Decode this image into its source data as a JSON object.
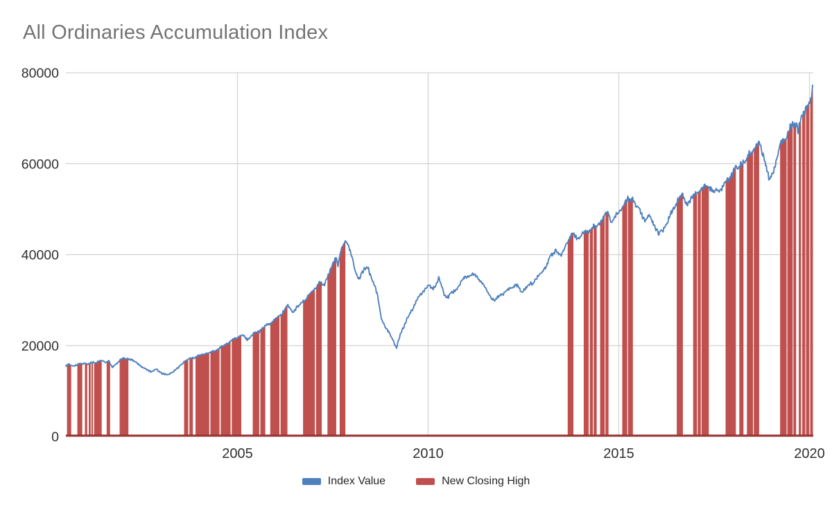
{
  "title": "All Ordinaries Accumulation Index",
  "legend": {
    "items": [
      {
        "label": "Index Value",
        "color": "#4E80BC"
      },
      {
        "label": "New Closing High",
        "color": "#C0504D"
      }
    ]
  },
  "chart_data": {
    "type": "line",
    "title": "All Ordinaries Accumulation Index",
    "xlabel": "",
    "ylabel": "",
    "xlim": [
      2000.5,
      2020.1
    ],
    "ylim": [
      0,
      80000
    ],
    "x_ticks": [
      2005,
      2010,
      2015,
      2020
    ],
    "y_ticks": [
      0,
      20000,
      40000,
      60000,
      80000
    ],
    "grid": true,
    "legend_position": "bottom",
    "gridline_color": "#D2D2D2",
    "baseline_color": "#953735",
    "tick_label_color": "#303030",
    "series": [
      {
        "name": "Index Value",
        "type": "line",
        "color": "#4E80BC",
        "points": [
          [
            2000.5,
            15500
          ],
          [
            2000.58,
            15900
          ],
          [
            2000.67,
            15500
          ],
          [
            2000.78,
            15700
          ],
          [
            2000.88,
            16000
          ],
          [
            2001.02,
            16200
          ],
          [
            2001.08,
            15800
          ],
          [
            2001.18,
            16200
          ],
          [
            2001.3,
            16400
          ],
          [
            2001.44,
            16700
          ],
          [
            2001.55,
            16400
          ],
          [
            2001.62,
            16800
          ],
          [
            2001.72,
            15100
          ],
          [
            2001.8,
            15900
          ],
          [
            2001.93,
            16900
          ],
          [
            2002.05,
            17100
          ],
          [
            2002.14,
            17200
          ],
          [
            2002.3,
            16500
          ],
          [
            2002.45,
            15600
          ],
          [
            2002.6,
            14700
          ],
          [
            2002.75,
            14300
          ],
          [
            2002.88,
            14700
          ],
          [
            2003.0,
            14000
          ],
          [
            2003.17,
            13500
          ],
          [
            2003.3,
            14200
          ],
          [
            2003.45,
            15100
          ],
          [
            2003.6,
            16500
          ],
          [
            2003.72,
            17000
          ],
          [
            2003.85,
            17300
          ],
          [
            2004.0,
            17800
          ],
          [
            2004.15,
            18200
          ],
          [
            2004.3,
            18500
          ],
          [
            2004.45,
            19000
          ],
          [
            2004.6,
            19700
          ],
          [
            2004.76,
            20700
          ],
          [
            2004.9,
            21400
          ],
          [
            2005.05,
            22100
          ],
          [
            2005.12,
            22300
          ],
          [
            2005.25,
            21300
          ],
          [
            2005.4,
            22400
          ],
          [
            2005.55,
            23100
          ],
          [
            2005.72,
            24200
          ],
          [
            2005.86,
            24800
          ],
          [
            2006.0,
            25800
          ],
          [
            2006.15,
            26900
          ],
          [
            2006.31,
            28800
          ],
          [
            2006.45,
            27400
          ],
          [
            2006.6,
            28600
          ],
          [
            2006.72,
            29800
          ],
          [
            2006.88,
            31000
          ],
          [
            2007.03,
            32600
          ],
          [
            2007.15,
            33800
          ],
          [
            2007.25,
            33200
          ],
          [
            2007.36,
            35000
          ],
          [
            2007.5,
            37800
          ],
          [
            2007.59,
            39600
          ],
          [
            2007.63,
            37300
          ],
          [
            2007.68,
            39800
          ],
          [
            2007.75,
            41400
          ],
          [
            2007.84,
            43300
          ],
          [
            2007.92,
            41800
          ],
          [
            2008.0,
            39500
          ],
          [
            2008.07,
            36500
          ],
          [
            2008.18,
            34800
          ],
          [
            2008.3,
            36300
          ],
          [
            2008.42,
            37200
          ],
          [
            2008.55,
            34200
          ],
          [
            2008.67,
            31000
          ],
          [
            2008.78,
            26000
          ],
          [
            2008.88,
            23800
          ],
          [
            2009.0,
            22600
          ],
          [
            2009.1,
            20800
          ],
          [
            2009.17,
            19400
          ],
          [
            2009.28,
            22800
          ],
          [
            2009.42,
            25200
          ],
          [
            2009.55,
            27500
          ],
          [
            2009.7,
            30000
          ],
          [
            2009.85,
            31800
          ],
          [
            2010.0,
            33100
          ],
          [
            2010.12,
            32400
          ],
          [
            2010.28,
            34700
          ],
          [
            2010.42,
            31500
          ],
          [
            2010.52,
            30700
          ],
          [
            2010.65,
            31600
          ],
          [
            2010.8,
            33200
          ],
          [
            2010.95,
            34800
          ],
          [
            2011.1,
            35500
          ],
          [
            2011.25,
            35400
          ],
          [
            2011.4,
            34000
          ],
          [
            2011.55,
            32000
          ],
          [
            2011.66,
            30400
          ],
          [
            2011.75,
            29600
          ],
          [
            2011.88,
            31200
          ],
          [
            2012.0,
            31500
          ],
          [
            2012.15,
            32700
          ],
          [
            2012.3,
            33300
          ],
          [
            2012.45,
            31900
          ],
          [
            2012.6,
            32900
          ],
          [
            2012.78,
            34200
          ],
          [
            2012.95,
            35800
          ],
          [
            2013.1,
            37800
          ],
          [
            2013.25,
            39900
          ],
          [
            2013.35,
            41200
          ],
          [
            2013.48,
            39400
          ],
          [
            2013.58,
            41500
          ],
          [
            2013.66,
            43350
          ],
          [
            2013.81,
            44500
          ],
          [
            2013.9,
            43800
          ],
          [
            2014.0,
            44000
          ],
          [
            2014.1,
            44800
          ],
          [
            2014.21,
            45400
          ],
          [
            2014.3,
            45700
          ],
          [
            2014.42,
            46300
          ],
          [
            2014.52,
            47400
          ],
          [
            2014.63,
            48700
          ],
          [
            2014.72,
            49600
          ],
          [
            2014.8,
            47200
          ],
          [
            2014.9,
            48400
          ],
          [
            2015.0,
            49200
          ],
          [
            2015.12,
            50800
          ],
          [
            2015.25,
            52000
          ],
          [
            2015.36,
            52400
          ],
          [
            2015.48,
            50300
          ],
          [
            2015.6,
            48900
          ],
          [
            2015.7,
            47400
          ],
          [
            2015.8,
            48400
          ],
          [
            2015.92,
            46900
          ],
          [
            2016.05,
            44400
          ],
          [
            2016.18,
            45800
          ],
          [
            2016.32,
            48000
          ],
          [
            2016.45,
            50400
          ],
          [
            2016.55,
            52300
          ],
          [
            2016.66,
            53000
          ],
          [
            2016.8,
            51200
          ],
          [
            2016.92,
            52500
          ],
          [
            2017.05,
            53600
          ],
          [
            2017.18,
            54400
          ],
          [
            2017.33,
            55300
          ],
          [
            2017.48,
            53900
          ],
          [
            2017.62,
            54100
          ],
          [
            2017.75,
            55100
          ],
          [
            2017.88,
            56600
          ],
          [
            2018.0,
            58300
          ],
          [
            2018.07,
            59300
          ],
          [
            2018.13,
            58300
          ],
          [
            2018.18,
            59800
          ],
          [
            2018.26,
            60600
          ],
          [
            2018.31,
            59800
          ],
          [
            2018.4,
            61800
          ],
          [
            2018.52,
            63100
          ],
          [
            2018.62,
            64000
          ],
          [
            2018.68,
            64300
          ],
          [
            2018.76,
            62600
          ],
          [
            2018.86,
            59800
          ],
          [
            2018.96,
            55900
          ],
          [
            2019.06,
            58800
          ],
          [
            2019.16,
            61800
          ],
          [
            2019.25,
            64100
          ],
          [
            2019.36,
            65700
          ],
          [
            2019.48,
            67400
          ],
          [
            2019.58,
            68500
          ],
          [
            2019.65,
            68900
          ],
          [
            2019.7,
            67600
          ],
          [
            2019.76,
            69200
          ],
          [
            2019.84,
            70800
          ],
          [
            2019.92,
            72400
          ],
          [
            2020.0,
            73800
          ],
          [
            2020.05,
            75000
          ],
          [
            2020.09,
            76600
          ]
        ]
      },
      {
        "name": "New Closing High",
        "type": "bars-under-line",
        "color": "#C0504D",
        "intervals": [
          [
            2000.53,
            2000.64
          ],
          [
            2000.8,
            2000.93
          ],
          [
            2001.0,
            2001.06
          ],
          [
            2001.1,
            2001.15
          ],
          [
            2001.17,
            2001.21
          ],
          [
            2001.24,
            2001.44
          ],
          [
            2001.57,
            2001.66
          ],
          [
            2001.91,
            2002.14
          ],
          [
            2003.6,
            2003.71
          ],
          [
            2003.74,
            2003.83
          ],
          [
            2003.9,
            2004.26
          ],
          [
            2004.29,
            2004.53
          ],
          [
            2004.56,
            2004.82
          ],
          [
            2004.85,
            2005.1
          ],
          [
            2005.4,
            2005.57
          ],
          [
            2005.6,
            2005.73
          ],
          [
            2005.86,
            2006.1
          ],
          [
            2006.13,
            2006.31
          ],
          [
            2006.72,
            2007.03
          ],
          [
            2007.06,
            2007.21
          ],
          [
            2007.36,
            2007.59
          ],
          [
            2007.68,
            2007.83
          ],
          [
            2013.66,
            2013.81
          ],
          [
            2014.08,
            2014.21
          ],
          [
            2014.24,
            2014.32
          ],
          [
            2014.34,
            2014.42
          ],
          [
            2014.51,
            2014.63
          ],
          [
            2014.65,
            2014.73
          ],
          [
            2015.09,
            2015.22
          ],
          [
            2015.24,
            2015.37
          ],
          [
            2016.52,
            2016.68
          ],
          [
            2016.95,
            2017.05
          ],
          [
            2017.07,
            2017.15
          ],
          [
            2017.17,
            2017.36
          ],
          [
            2017.8,
            2018.07
          ],
          [
            2018.16,
            2018.27
          ],
          [
            2018.36,
            2018.52
          ],
          [
            2018.54,
            2018.68
          ],
          [
            2019.23,
            2019.4
          ],
          [
            2019.42,
            2019.56
          ],
          [
            2019.58,
            2019.65
          ],
          [
            2019.72,
            2019.78
          ],
          [
            2019.81,
            2019.89
          ],
          [
            2019.91,
            2019.99
          ],
          [
            2020.02,
            2020.09
          ]
        ]
      }
    ]
  }
}
